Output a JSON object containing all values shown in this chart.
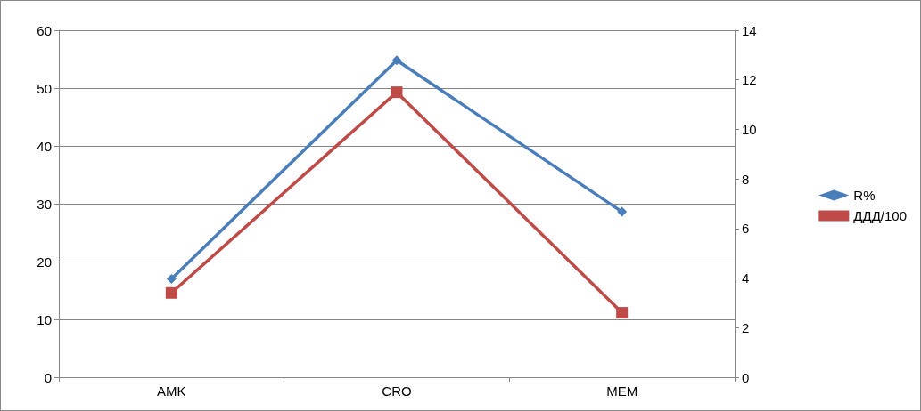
{
  "chart_data": {
    "type": "line",
    "categories": [
      "AMK",
      "CRO",
      "MEM"
    ],
    "series": [
      {
        "name": "R%",
        "color": "#4a7ebb",
        "values": [
          17,
          54.8,
          28.6
        ],
        "marker": "diamond"
      },
      {
        "name": "ДДД/100",
        "color": "#be4b48",
        "values": [
          3.4,
          11.5,
          2.6
        ],
        "marker": "square",
        "axis": "y2"
      }
    ],
    "ylim": [
      0,
      60
    ],
    "yticks": [
      0,
      10,
      20,
      30,
      40,
      50,
      60
    ],
    "y2lim": [
      0,
      14
    ],
    "y2ticks": [
      0,
      2,
      4,
      6,
      8,
      10,
      12,
      14
    ],
    "grid": "y",
    "legend": "right",
    "line_style": "solid"
  }
}
